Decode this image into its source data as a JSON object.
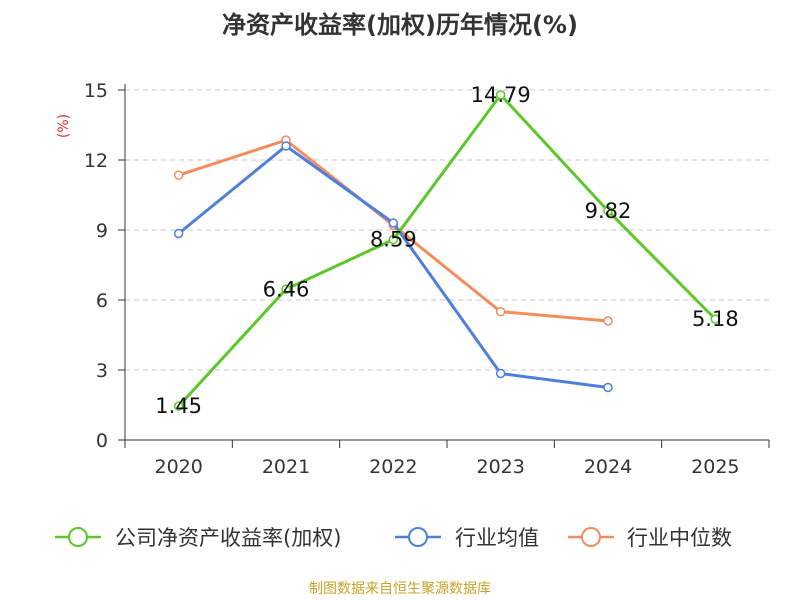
{
  "chart_data": {
    "type": "line",
    "title": "净资产收益率(加权)历年情况(%)",
    "ylabel": "(%)",
    "xlabel": "",
    "categories": [
      "2020",
      "2021",
      "2022",
      "2023",
      "2024",
      "2025"
    ],
    "yticks": [
      "0",
      "3",
      "6",
      "9",
      "12",
      "15"
    ],
    "ylim": [
      0,
      15
    ],
    "grid": true,
    "legend_position": "bottom",
    "series": [
      {
        "name": "公司净资产收益率(加权)",
        "color": "#5cc72a",
        "values": [
          1.45,
          6.46,
          8.59,
          14.79,
          9.82,
          5.18
        ],
        "labels": [
          "1.45",
          "6.46",
          "8.59",
          "14.79",
          "9.82",
          "5.18"
        ]
      },
      {
        "name": "行业均值",
        "color": "#4e7fdd",
        "values": [
          8.85,
          12.6,
          9.3,
          2.85,
          2.25,
          null
        ]
      },
      {
        "name": "行业中位数",
        "color": "#f58c5c",
        "values": [
          11.35,
          12.85,
          9.2,
          5.5,
          5.1,
          null
        ]
      }
    ]
  },
  "footer": {
    "source": "制图数据来自恒生聚源数据库"
  }
}
